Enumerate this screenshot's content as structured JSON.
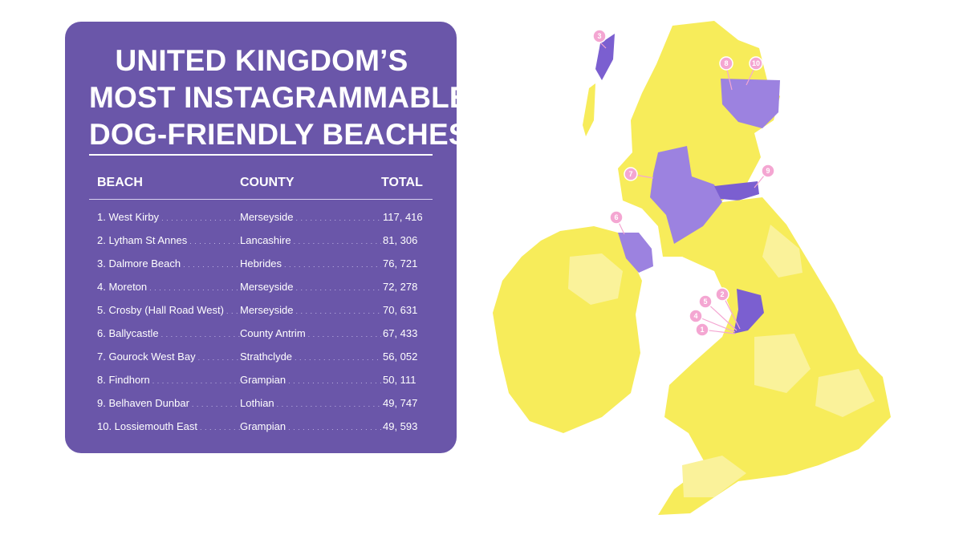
{
  "title": {
    "line1": "UNITED KINGDOM’S",
    "line2": "MOST INSTAGRAMMABLE",
    "line3": "DOG-FRIENDLY BEACHES"
  },
  "table": {
    "headers": {
      "beach": "BEACH",
      "county": "COUNTY",
      "total": "TOTAL"
    },
    "rows": [
      {
        "beach": "1. West Kirby",
        "county": "Merseyside",
        "total": "117, 416"
      },
      {
        "beach": "2. Lytham St Annes",
        "county": "Lancashire",
        "total": "81, 306"
      },
      {
        "beach": "3. Dalmore Beach",
        "county": "Hebrides",
        "total": "76, 721"
      },
      {
        "beach": "4. Moreton",
        "county": "Merseyside",
        "total": "72, 278"
      },
      {
        "beach": "5. Crosby (Hall Road West)",
        "county": "Merseyside",
        "total": "70, 631"
      },
      {
        "beach": "6. Ballycastle",
        "county": "County Antrim",
        "total": "67, 433"
      },
      {
        "beach": "7. Gourock West Bay",
        "county": "Strathclyde",
        "total": "56, 052"
      },
      {
        "beach": "8. Findhorn",
        "county": "Grampian",
        "total": "50, 111"
      },
      {
        "beach": "9. Belhaven Dunbar",
        "county": "Lothian",
        "total": "49, 747"
      },
      {
        "beach": "10. Lossiemouth East",
        "county": "Grampian",
        "total": "49, 593"
      }
    ]
  },
  "map": {
    "pins": [
      "1",
      "2",
      "3",
      "4",
      "5",
      "6",
      "7",
      "8",
      "9",
      "10"
    ],
    "colors": {
      "panel": "#6a56a9",
      "highlight_region": "#9c82e0",
      "highlight_region_dark": "#7b5fd0",
      "land": "#f7ec5a",
      "land_light": "#faf29a",
      "pin": "#f4a6d2"
    }
  }
}
